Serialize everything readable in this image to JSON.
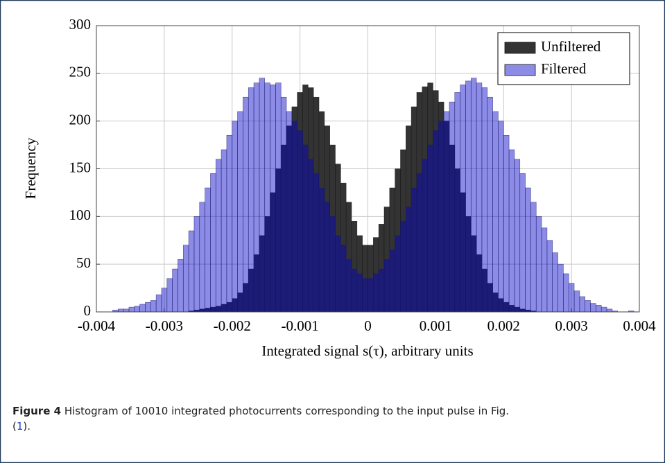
{
  "chart_data": {
    "type": "histogram",
    "xlabel": "Integrated signal s(τ), arbitrary units",
    "ylabel": "Frequency",
    "bins": [
      -0.004,
      -0.00392,
      -0.00384,
      -0.00376,
      -0.00368,
      -0.0036,
      -0.00352,
      -0.00344,
      -0.00336,
      -0.00328,
      -0.0032,
      -0.00312,
      -0.00304,
      -0.00296,
      -0.00288,
      -0.0028,
      -0.00272,
      -0.00264,
      -0.00256,
      -0.00248,
      -0.0024,
      -0.00232,
      -0.00224,
      -0.00216,
      -0.00208,
      -0.002,
      -0.00192,
      -0.00184,
      -0.00176,
      -0.00168,
      -0.0016,
      -0.00152,
      -0.00144,
      -0.00136,
      -0.00128,
      -0.0012,
      -0.00112,
      -0.00104,
      -0.00096,
      -0.00088,
      -0.0008,
      -0.00072,
      -0.00064,
      -0.00056,
      -0.00048,
      -0.0004,
      -0.00032,
      -0.00024,
      -0.00016,
      -8e-05,
      0,
      8e-05,
      0.00016,
      0.00024,
      0.00032,
      0.0004,
      0.00048,
      0.00056,
      0.00064,
      0.00072,
      0.0008,
      0.00088,
      0.00096,
      0.00104,
      0.00112,
      0.0012,
      0.00128,
      0.00136,
      0.00144,
      0.00152,
      0.0016,
      0.00168,
      0.00176,
      0.00184,
      0.00192,
      0.002,
      0.00208,
      0.00216,
      0.00224,
      0.00232,
      0.0024,
      0.00248,
      0.00256,
      0.00264,
      0.00272,
      0.0028,
      0.00288,
      0.00296,
      0.00304,
      0.00312,
      0.0032,
      0.00328,
      0.00336,
      0.00344,
      0.00352,
      0.0036,
      0.00368,
      0.00376,
      0.00384,
      0.00392,
      0.004
    ],
    "series": [
      {
        "name": "Unfiltered",
        "color": "#333333",
        "values": [
          0,
          0,
          0,
          0,
          0,
          0,
          0,
          0,
          0,
          0,
          0,
          0,
          0,
          0,
          0,
          0,
          0,
          1,
          2,
          3,
          4,
          5,
          6,
          8,
          10,
          14,
          20,
          30,
          45,
          60,
          80,
          100,
          125,
          150,
          175,
          195,
          215,
          230,
          238,
          235,
          225,
          210,
          195,
          175,
          155,
          135,
          115,
          95,
          80,
          70,
          70,
          78,
          92,
          110,
          130,
          150,
          170,
          195,
          215,
          230,
          236,
          240,
          232,
          220,
          200,
          175,
          150,
          125,
          100,
          80,
          60,
          45,
          30,
          20,
          14,
          10,
          7,
          5,
          3,
          2,
          1,
          0,
          0,
          0,
          0,
          0,
          0,
          0,
          0,
          0,
          0,
          0,
          0,
          0,
          0,
          0,
          0,
          0,
          0,
          0
        ]
      },
      {
        "name": "Filtered",
        "color": "#0000c8",
        "values": [
          0,
          0,
          0,
          2,
          3,
          3,
          5,
          6,
          8,
          10,
          12,
          18,
          25,
          35,
          45,
          55,
          70,
          85,
          100,
          115,
          130,
          145,
          160,
          170,
          185,
          200,
          210,
          225,
          235,
          240,
          245,
          240,
          238,
          240,
          225,
          210,
          200,
          190,
          175,
          160,
          145,
          130,
          115,
          100,
          80,
          70,
          55,
          45,
          40,
          35,
          35,
          40,
          45,
          55,
          65,
          80,
          95,
          110,
          130,
          145,
          160,
          175,
          190,
          200,
          210,
          220,
          230,
          238,
          242,
          245,
          240,
          235,
          225,
          210,
          200,
          185,
          170,
          160,
          145,
          130,
          115,
          100,
          88,
          75,
          62,
          50,
          40,
          30,
          22,
          16,
          12,
          9,
          7,
          5,
          3,
          1,
          0,
          0,
          1,
          0
        ]
      }
    ],
    "xlim": [
      -0.004,
      0.004
    ],
    "xticks": [
      -0.004,
      -0.003,
      -0.002,
      -0.001,
      0,
      0.001,
      0.002,
      0.003,
      0.004
    ],
    "ylim": [
      0,
      300
    ],
    "yticks": [
      0,
      50,
      100,
      150,
      200,
      250,
      300
    ],
    "grid": true,
    "legend": "upper right"
  },
  "caption": {
    "label": "Figure 4",
    "text": "Histogram of 10010 integrated photocurrents corresponding to the input pulse in Fig. (",
    "ref": "1",
    "tail": ")."
  }
}
